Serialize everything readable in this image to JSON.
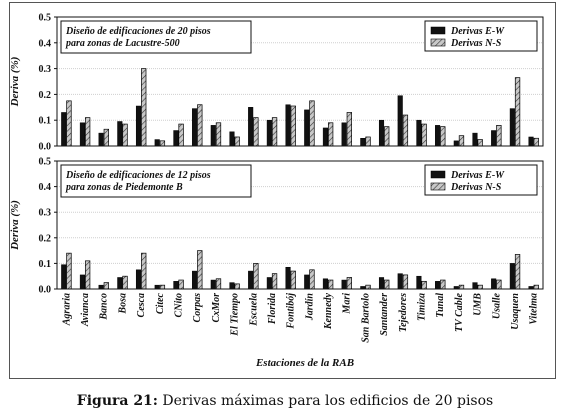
{
  "caption": {
    "label": "Figura 21:",
    "text": "Derivas máximas para los edificios de 20 pisos"
  },
  "colors": {
    "ew": "#111111",
    "ns_fill": "#c8c8c8",
    "ns_hatch": "#333333",
    "grid": "#cfcfcf",
    "frame": "#555555"
  },
  "chart_data": [
    {
      "type": "bar",
      "title": "Diseño de edificaciones de 20 pisos para zonas de Lacustre-500",
      "title_lines": [
        "Diseño de edificaciones de 20 pisos",
        "para zonas de Lacustre-500"
      ],
      "ylabel": "Deriva (%)",
      "xlabel": "",
      "ylim": [
        0,
        0.5
      ],
      "yticks": [
        "0.0",
        "0.1",
        "0.2",
        "0.3",
        "0.4",
        "0.5"
      ],
      "grid": true,
      "legend_position": "top-right",
      "categories": [
        "Agraria",
        "Avianca",
        "Banco",
        "Bosa",
        "Cesca",
        "Citec",
        "CNito",
        "Corpas",
        "CxMor",
        "El Tiempo",
        "Escuela",
        "Florida",
        "Fontibój",
        "Jardín",
        "Kennedy",
        "Mari",
        "San Bartolo",
        "Santander",
        "Tejedores",
        "Timiza",
        "Tunal",
        "TV Cable",
        "UMB",
        "Usalle",
        "Usaquen",
        "Vitelma"
      ],
      "series": [
        {
          "name": "Derivas E-W",
          "values": [
            0.13,
            0.09,
            0.05,
            0.095,
            0.155,
            0.025,
            0.06,
            0.145,
            0.08,
            0.055,
            0.15,
            0.1,
            0.16,
            0.14,
            0.07,
            0.09,
            0.03,
            0.1,
            0.195,
            0.1,
            0.08,
            0.02,
            0.05,
            0.06,
            0.145,
            0.035
          ]
        },
        {
          "name": "Derivas N-S",
          "values": [
            0.175,
            0.11,
            0.065,
            0.085,
            0.3,
            0.02,
            0.085,
            0.16,
            0.09,
            0.035,
            0.11,
            0.11,
            0.155,
            0.175,
            0.09,
            0.13,
            0.035,
            0.075,
            0.12,
            0.085,
            0.075,
            0.04,
            0.025,
            0.08,
            0.265,
            0.03
          ]
        }
      ]
    },
    {
      "type": "bar",
      "title": "Diseño de edificaciones de 12 pisos para zonas de Piedemonte B",
      "title_lines": [
        "Diseño de edificaciones de 12 pisos",
        "para zonas de Piedemonte B"
      ],
      "ylabel": "Deriva (%)",
      "xlabel": "Estaciones de la RAB",
      "ylim": [
        0,
        0.5
      ],
      "yticks": [
        "0.0",
        "0.1",
        "0.2",
        "0.3",
        "0.4",
        "0.5"
      ],
      "grid": true,
      "legend_position": "top-right",
      "categories": [
        "Agraria",
        "Avianca",
        "Banco",
        "Bosa",
        "Cesca",
        "Citec",
        "CNito",
        "Corpas",
        "CxMor",
        "El Tiempo",
        "Escuela",
        "Florida",
        "Fontibój",
        "Jardín",
        "Kennedy",
        "Mari",
        "San Bartolo",
        "Santander",
        "Tejedores",
        "Timiza",
        "Tunal",
        "TV Cable",
        "UMB",
        "Usalle",
        "Usaquen",
        "Vitelma"
      ],
      "series": [
        {
          "name": "Derivas E-W",
          "values": [
            0.095,
            0.055,
            0.015,
            0.045,
            0.075,
            0.015,
            0.03,
            0.07,
            0.035,
            0.025,
            0.07,
            0.045,
            0.085,
            0.055,
            0.04,
            0.035,
            0.01,
            0.045,
            0.06,
            0.05,
            0.03,
            0.01,
            0.025,
            0.04,
            0.1,
            0.01
          ]
        },
        {
          "name": "Derivas N-S",
          "values": [
            0.14,
            0.11,
            0.025,
            0.05,
            0.14,
            0.015,
            0.035,
            0.15,
            0.04,
            0.02,
            0.1,
            0.06,
            0.07,
            0.075,
            0.035,
            0.045,
            0.015,
            0.035,
            0.055,
            0.03,
            0.035,
            0.015,
            0.015,
            0.035,
            0.135,
            0.015
          ]
        }
      ]
    }
  ]
}
